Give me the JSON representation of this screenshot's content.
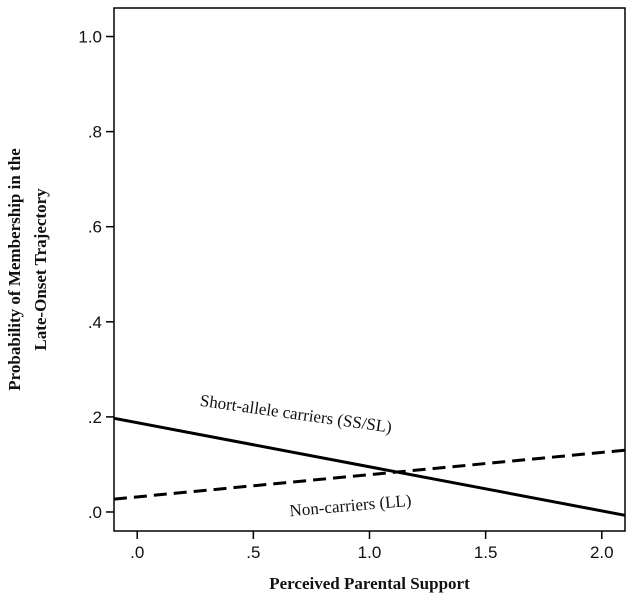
{
  "chart_data": {
    "type": "line",
    "xlabel": "Perceived Parental Support",
    "ylabel": [
      "Probability of Membership in the",
      "Late-Onset Trajectory"
    ],
    "xlim": [
      -0.1,
      2.1
    ],
    "ylim": [
      -0.04,
      1.06
    ],
    "xticks": [
      0.0,
      0.5,
      1.0,
      1.5,
      2.0
    ],
    "xtick_labels": [
      ".0",
      ".5",
      "1.0",
      "1.5",
      "2.0"
    ],
    "yticks": [
      0.0,
      0.2,
      0.4,
      0.6,
      0.8,
      1.0
    ],
    "ytick_labels": [
      ".0",
      ".2",
      ".4",
      ".6",
      ".8",
      "1.0"
    ],
    "grid": false,
    "legend": "none",
    "series": [
      {
        "name": "Short-allele carriers (SS/SL)",
        "style": "solid",
        "color": "#000000",
        "x": [
          -0.1,
          2.1
        ],
        "y": [
          0.197,
          -0.007
        ]
      },
      {
        "name": "Non-carriers (LL)",
        "style": "dashed",
        "color": "#000000",
        "x": [
          -0.1,
          2.1
        ],
        "y": [
          0.027,
          0.13
        ]
      }
    ],
    "annotations": [
      {
        "text": "Short-allele carriers (SS/SL)",
        "x": 0.68,
        "y": 0.195,
        "rotate": 8
      },
      {
        "text": "Non-carriers (LL)",
        "x": 0.92,
        "y": 0.002,
        "rotate": -5
      }
    ]
  }
}
